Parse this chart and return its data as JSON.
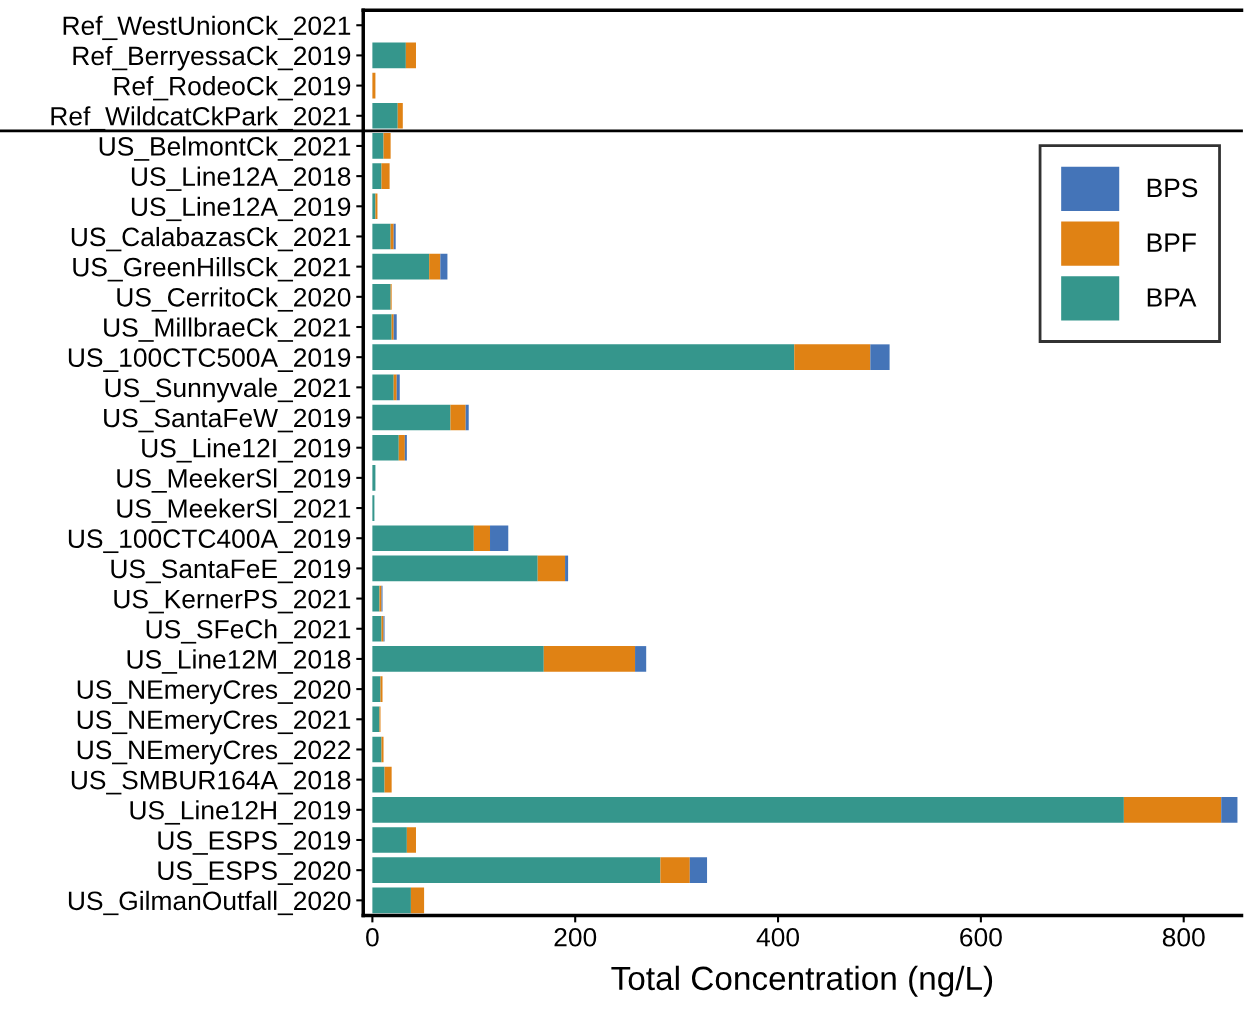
{
  "chart_data": {
    "type": "bar",
    "orientation": "horizontal",
    "stacked": true,
    "xlabel": "Total Concentration (ng/L)",
    "categories": [
      "Ref_WestUnionCk_2021",
      "Ref_BerryessaCk_2019",
      "Ref_RodeoCk_2019",
      "Ref_WildcatCkPark_2021",
      "US_BelmontCk_2021",
      "US_Line12A_2018",
      "US_Line12A_2019",
      "US_CalabazasCk_2021",
      "US_GreenHillsCk_2021",
      "US_CerritoCk_2020",
      "US_MillbraeCk_2021",
      "US_100CTC500A_2019",
      "US_Sunnyvale_2021",
      "US_SantaFeW_2019",
      "US_Line12I_2019",
      "US_MeekerSl_2019",
      "US_MeekerSl_2021",
      "US_100CTC400A_2019",
      "US_SantaFeE_2019",
      "US_KernerPS_2021",
      "US_SFeCh_2021",
      "US_Line12M_2018",
      "US_NEmeryCres_2020",
      "US_NEmeryCres_2021",
      "US_NEmeryCres_2022",
      "US_SMBUR164A_2018",
      "US_Line12H_2019",
      "US_ESPS_2019",
      "US_ESPS_2020",
      "US_GilmanOutfall_2020"
    ],
    "series": [
      {
        "name": "BPA",
        "color": "#35968c",
        "values": [
          0,
          33,
          0,
          25,
          11,
          9,
          3,
          18,
          56,
          18,
          19,
          416,
          21,
          77,
          26,
          3,
          2,
          100,
          163,
          7,
          9,
          169,
          8,
          7,
          9,
          12,
          741,
          34,
          284,
          38
        ]
      },
      {
        "name": "BPF",
        "color": "#e08214",
        "values": [
          0,
          10,
          3,
          5,
          7,
          8,
          2,
          3,
          11,
          1,
          2,
          75,
          3,
          15,
          6,
          0,
          0,
          16,
          27,
          2,
          2,
          90,
          2,
          1,
          2,
          7,
          96,
          9,
          29,
          13
        ]
      },
      {
        "name": "BPS",
        "color": "#4474b8",
        "values": [
          0,
          0,
          0,
          0,
          0,
          0,
          0,
          2,
          7,
          0,
          3,
          19,
          3,
          3,
          2,
          0,
          0,
          18,
          3,
          1,
          1,
          11,
          0,
          0,
          0,
          0,
          16,
          0,
          17,
          0
        ]
      }
    ],
    "xlim": [
      -9,
      857
    ],
    "xticks": [
      0,
      200,
      400,
      600,
      800
    ],
    "legend": "top right",
    "grid": false
  }
}
